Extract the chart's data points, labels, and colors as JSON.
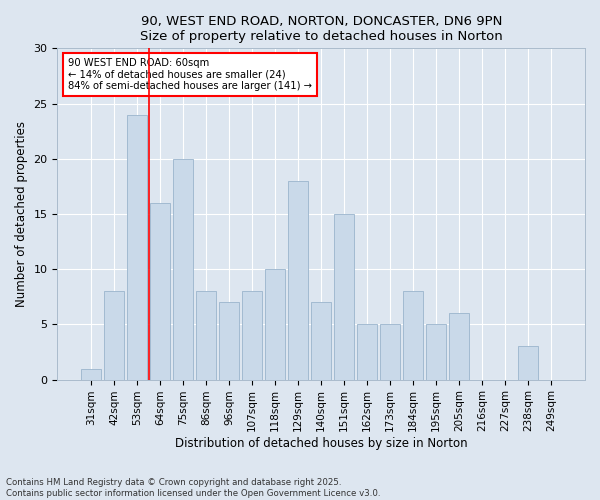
{
  "title_line1": "90, WEST END ROAD, NORTON, DONCASTER, DN6 9PN",
  "title_line2": "Size of property relative to detached houses in Norton",
  "xlabel": "Distribution of detached houses by size in Norton",
  "ylabel": "Number of detached properties",
  "categories": [
    "31sqm",
    "42sqm",
    "53sqm",
    "64sqm",
    "75sqm",
    "86sqm",
    "96sqm",
    "107sqm",
    "118sqm",
    "129sqm",
    "140sqm",
    "151sqm",
    "162sqm",
    "173sqm",
    "184sqm",
    "195sqm",
    "205sqm",
    "216sqm",
    "227sqm",
    "238sqm",
    "249sqm"
  ],
  "values": [
    1,
    8,
    24,
    16,
    20,
    8,
    7,
    8,
    10,
    18,
    7,
    15,
    5,
    5,
    8,
    5,
    6,
    0,
    0,
    3,
    0
  ],
  "bar_color": "#c9d9e9",
  "bar_edge_color": "#9ab4cc",
  "ylim": [
    0,
    30
  ],
  "yticks": [
    0,
    5,
    10,
    15,
    20,
    25,
    30
  ],
  "annotation_text": "90 WEST END ROAD: 60sqm\n← 14% of detached houses are smaller (24)\n84% of semi-detached houses are larger (141) →",
  "red_line_x": 2.5,
  "background_color": "#dde6f0",
  "plot_bg_color": "#dde6f0",
  "footer_line1": "Contains HM Land Registry data © Crown copyright and database right 2025.",
  "footer_line2": "Contains public sector information licensed under the Open Government Licence v3.0.",
  "title_fontsize": 9.5,
  "label_fontsize": 8.5,
  "tick_fontsize": 7.5,
  "footer_fontsize": 6.2
}
